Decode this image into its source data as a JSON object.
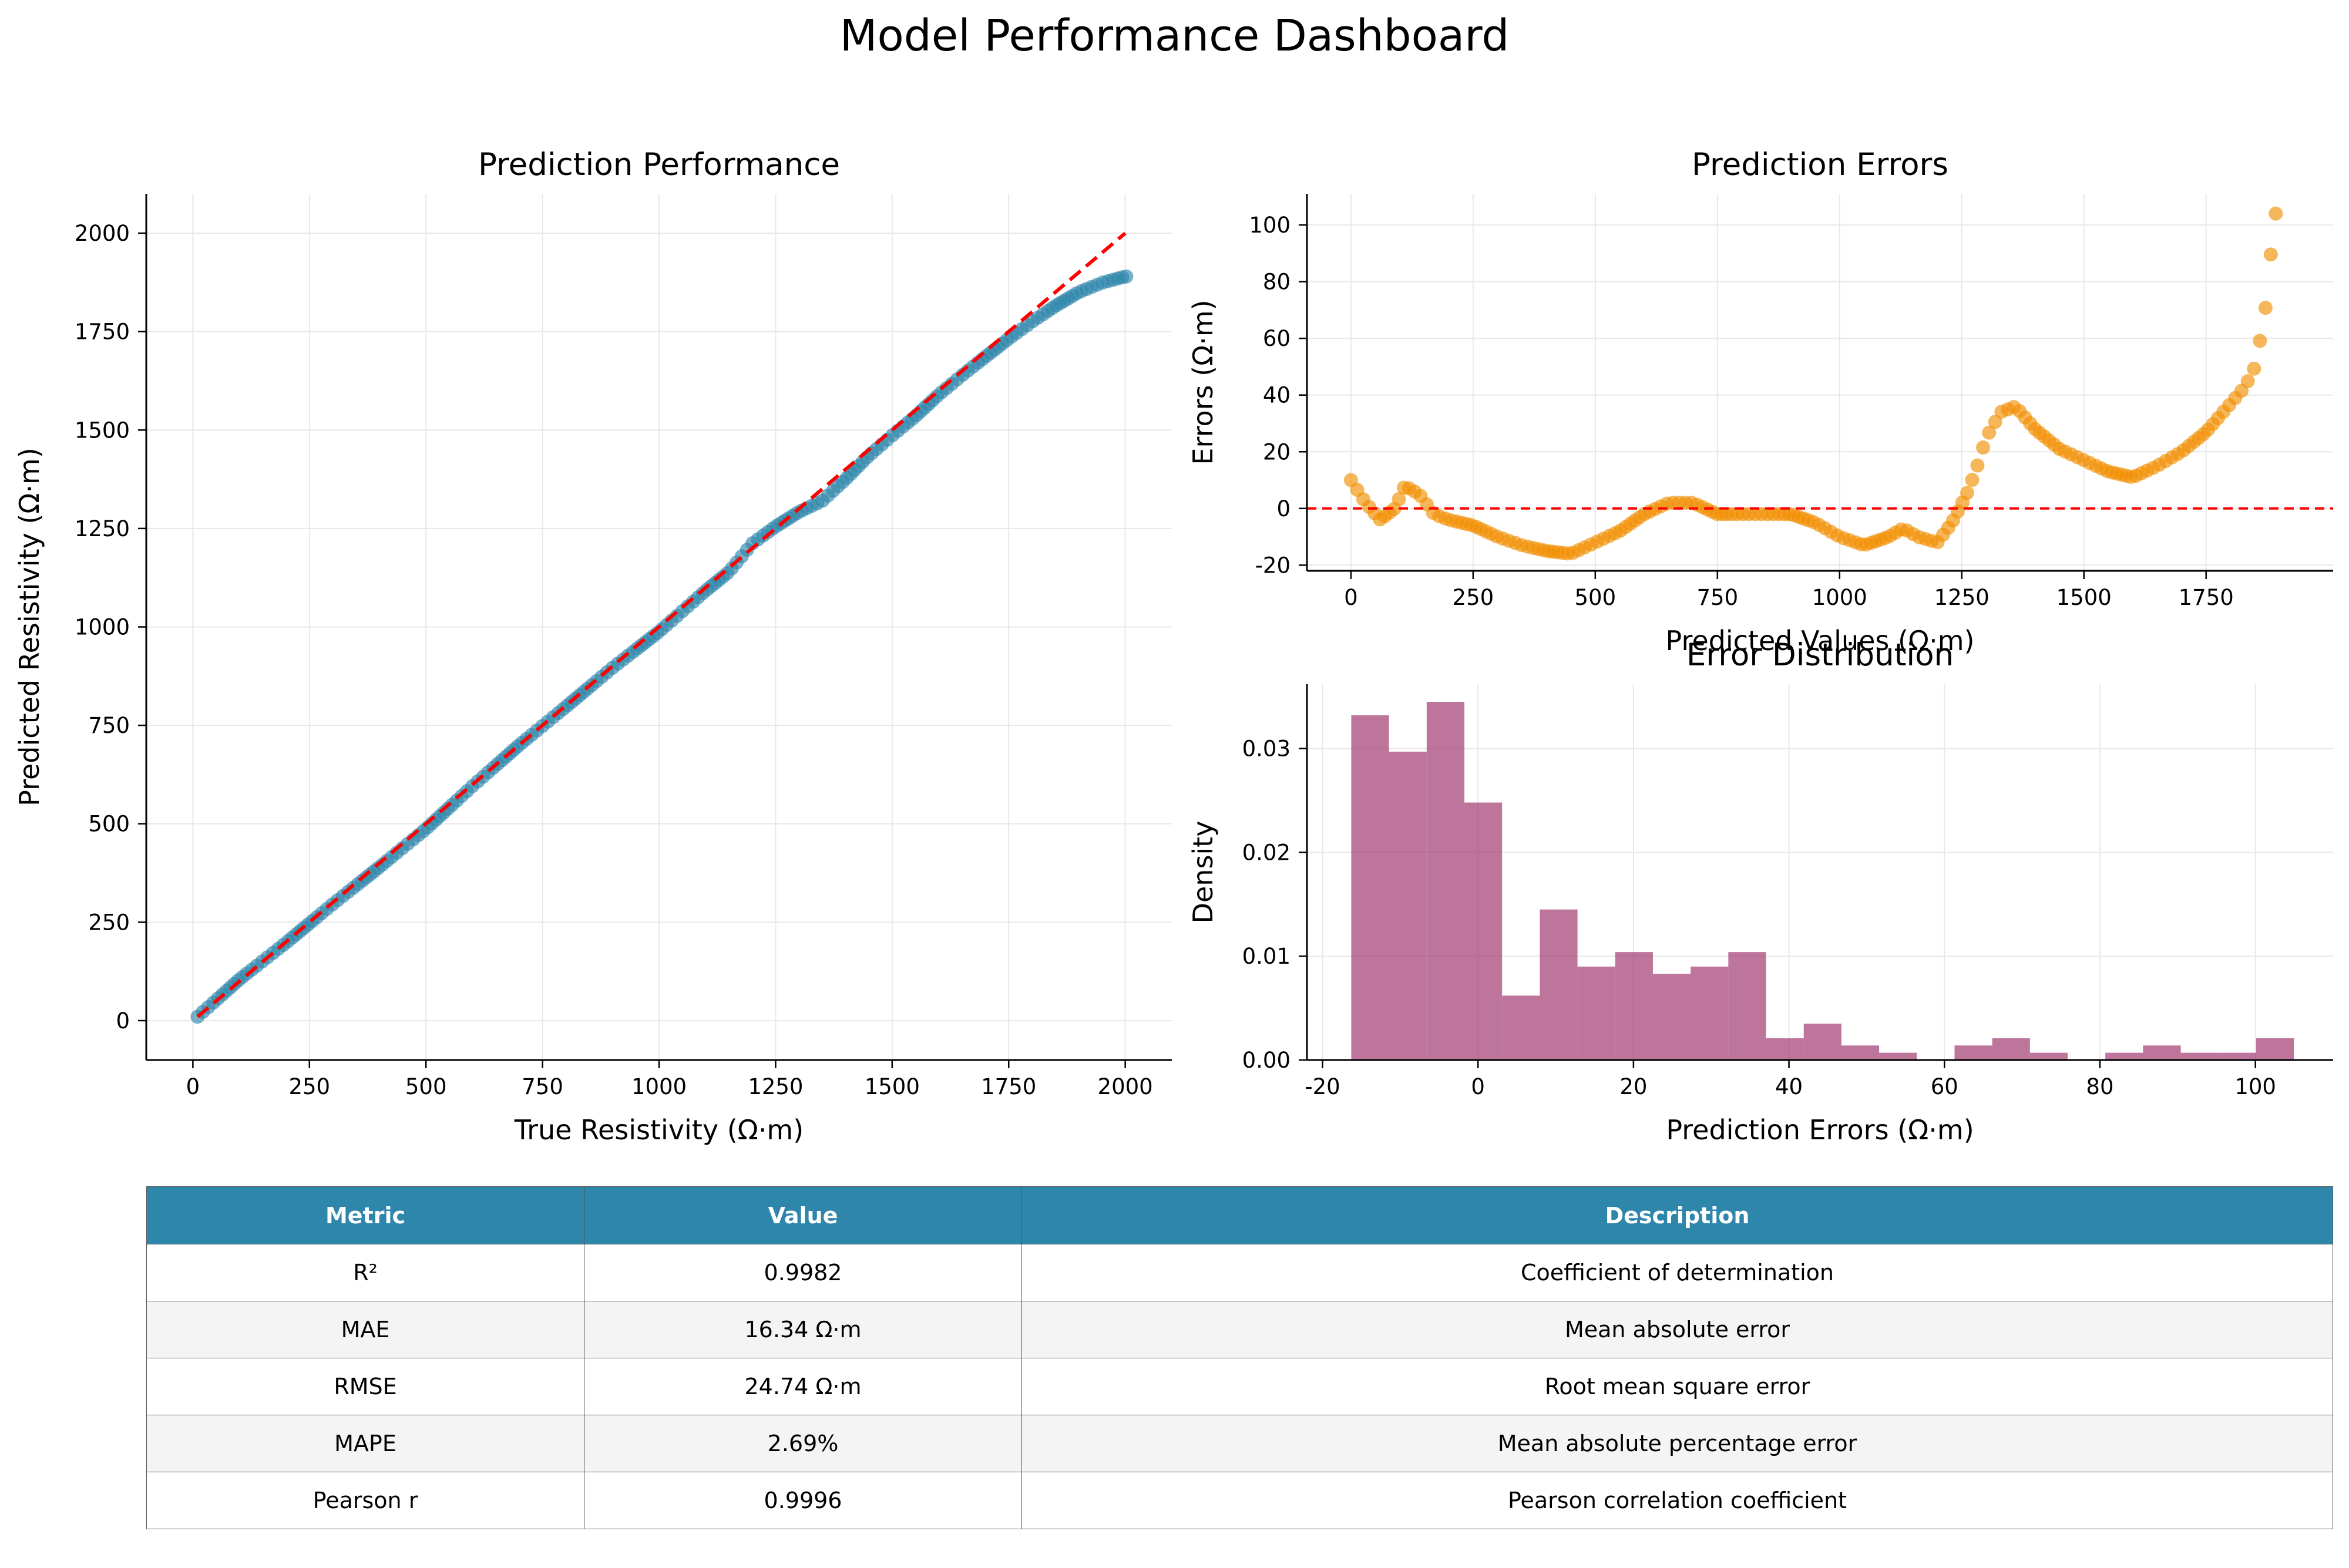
{
  "page_title": "Model Performance Dashboard",
  "colors": {
    "scatter_point": "#2e86ab",
    "error_point": "#f18f01",
    "histogram_bar": "#a23b72",
    "reference_line": "#ff0000",
    "table_header": "#2e86ab",
    "table_alt_row": "#f4f4f4"
  },
  "chart_data": [
    {
      "type": "scatter",
      "title": "Prediction Performance",
      "xlabel": "True Resistivity (Ω·m)",
      "ylabel": "Predicted Resistivity (Ω·m)",
      "xlim": [
        -100,
        2100
      ],
      "ylim": [
        -100,
        2100
      ],
      "xticks": [
        0,
        250,
        500,
        750,
        1000,
        1250,
        1500,
        1750,
        2000
      ],
      "yticks": [
        0,
        250,
        500,
        750,
        1000,
        1250,
        1500,
        1750,
        2000
      ],
      "grid": true,
      "reference_line": {
        "name": "y = x",
        "x": [
          10,
          2000
        ],
        "y": [
          10,
          2000
        ],
        "style": "dashed"
      },
      "curve": {
        "x": [
          10,
          100,
          200,
          300,
          400,
          500,
          600,
          700,
          800,
          900,
          1000,
          1050,
          1100,
          1150,
          1200,
          1250,
          1300,
          1350,
          1400,
          1450,
          1500,
          1550,
          1600,
          1650,
          1700,
          1750,
          1800,
          1850,
          1900,
          1950,
          2000
        ],
        "y": [
          10,
          105,
          198,
          296,
          390,
          487,
          596,
          700,
          797,
          896,
          988,
          1040,
          1092,
          1140,
          1212,
          1255,
          1292,
          1320,
          1375,
          1435,
          1486,
          1535,
          1590,
          1639,
          1686,
          1732,
          1775,
          1815,
          1850,
          1874,
          1890
        ]
      }
    },
    {
      "type": "scatter",
      "title": "Prediction Errors",
      "xlabel": "Predicted Values (Ω·m)",
      "ylabel": "Errors (Ω·m)",
      "xlim": [
        -90,
        2010
      ],
      "ylim": [
        -22,
        111
      ],
      "xticks": [
        0,
        250,
        500,
        750,
        1000,
        1250,
        1500,
        1750
      ],
      "yticks": [
        -20,
        0,
        20,
        40,
        60,
        80,
        100
      ],
      "grid": true,
      "reference_line": {
        "name": "zero error",
        "y": 0,
        "style": "dashed"
      },
      "curve": {
        "x": [
          0,
          30,
          60,
          90,
          110,
          140,
          170,
          200,
          250,
          300,
          350,
          400,
          450,
          500,
          550,
          600,
          650,
          700,
          750,
          800,
          850,
          900,
          950,
          1000,
          1050,
          1100,
          1130,
          1160,
          1200,
          1230,
          1260,
          1280,
          1300,
          1330,
          1360,
          1400,
          1450,
          1500,
          1550,
          1600,
          1650,
          1700,
          1750,
          1800,
          1830,
          1850,
          1870,
          1880,
          1890
        ],
        "y": [
          10,
          2,
          -4,
          0,
          8,
          5,
          -2,
          -4,
          -6,
          -10,
          -13,
          -15,
          -16,
          -12,
          -8,
          -2,
          2,
          2,
          -2,
          -2,
          -2,
          -2,
          -5,
          -10,
          -13,
          -10,
          -7,
          -10,
          -12,
          -5,
          5,
          14,
          25,
          34,
          36,
          28,
          21,
          17,
          13,
          11,
          15,
          20,
          27,
          37,
          43,
          50,
          68,
          85,
          104
        ]
      }
    },
    {
      "type": "bar",
      "title": "Error Distribution",
      "xlabel": "Prediction Errors (Ω·m)",
      "ylabel": "Density",
      "xlim": [
        -22,
        110
      ],
      "ylim": [
        0,
        0.0362
      ],
      "xticks": [
        -20,
        0,
        20,
        40,
        60,
        80,
        100
      ],
      "yticks": [
        0.0,
        0.01,
        0.02,
        0.03
      ],
      "grid": true,
      "bin_width": 4.85,
      "bin_edges_start": -16.3,
      "values": [
        0.0332,
        0.0297,
        0.0345,
        0.0248,
        0.0062,
        0.0145,
        0.009,
        0.0104,
        0.0083,
        0.009,
        0.0104,
        0.0021,
        0.0035,
        0.0014,
        0.0007,
        0.0,
        0.0014,
        0.0021,
        0.0007,
        0.0,
        0.0007,
        0.0014,
        0.0007,
        0.0007,
        0.0021
      ]
    }
  ],
  "table": {
    "headers": [
      "Metric",
      "Value",
      "Description"
    ],
    "rows": [
      [
        "R²",
        "0.9982",
        "Coefficient of determination"
      ],
      [
        "MAE",
        "16.34 Ω·m",
        "Mean absolute error"
      ],
      [
        "RMSE",
        "24.74 Ω·m",
        "Root mean square error"
      ],
      [
        "MAPE",
        "2.69%",
        "Mean absolute percentage error"
      ],
      [
        "Pearson r",
        "0.9996",
        "Pearson correlation coefficient"
      ]
    ]
  }
}
